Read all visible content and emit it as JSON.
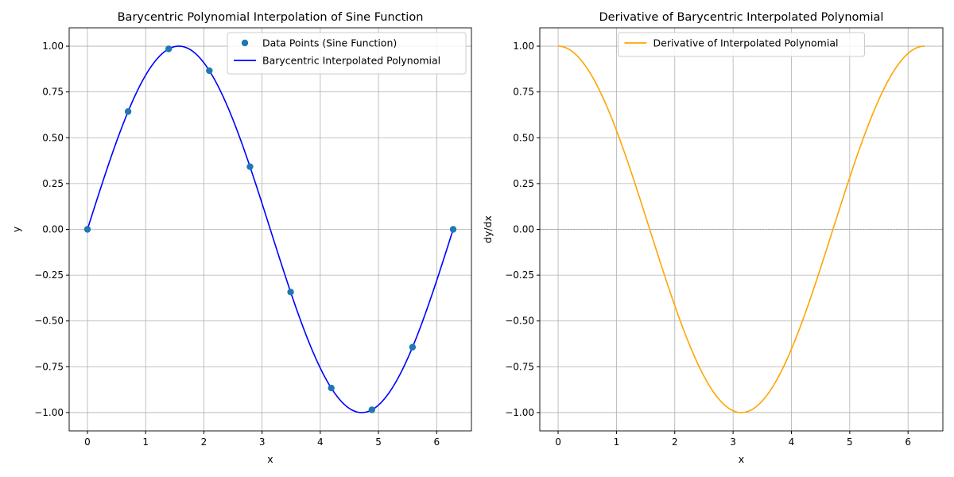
{
  "chart_data": [
    {
      "type": "line",
      "title": "Barycentric Polynomial Interpolation of Sine Function",
      "xlabel": "x",
      "ylabel": "y",
      "xlim": [
        -0.314,
        6.597
      ],
      "ylim": [
        -1.1,
        1.1
      ],
      "xticks": [
        "0",
        "1",
        "2",
        "3",
        "4",
        "5",
        "6"
      ],
      "yticks": [
        "−1.00",
        "−0.75",
        "−0.50",
        "−0.25",
        "0.00",
        "0.25",
        "0.50",
        "0.75",
        "1.00"
      ],
      "grid": true,
      "legend_position": "top-right",
      "series": [
        {
          "name": "Data Points (Sine Function)",
          "kind": "scatter",
          "color": "#1f77b4",
          "x": [
            0,
            0.698,
            1.396,
            2.094,
            2.793,
            3.491,
            4.189,
            4.887,
            5.585,
            6.283
          ],
          "y": [
            0,
            0.643,
            0.985,
            0.866,
            0.342,
            -0.342,
            -0.866,
            -0.985,
            -0.643,
            0
          ]
        },
        {
          "name": "Barycentric Interpolated Polynomial",
          "kind": "line",
          "color": "#0000ff",
          "function": "sin(x)",
          "x_range": [
            0,
            6.283
          ]
        }
      ]
    },
    {
      "type": "line",
      "title": "Derivative of Barycentric Interpolated Polynomial",
      "xlabel": "x",
      "ylabel": "dy/dx",
      "xlim": [
        -0.314,
        6.597
      ],
      "ylim": [
        -1.1,
        1.1
      ],
      "xticks": [
        "0",
        "1",
        "2",
        "3",
        "4",
        "5",
        "6"
      ],
      "yticks": [
        "−1.00",
        "−0.75",
        "−0.50",
        "−0.25",
        "0.00",
        "0.25",
        "0.50",
        "0.75",
        "1.00"
      ],
      "grid": true,
      "hline": 0,
      "legend_position": "top-center",
      "series": [
        {
          "name": "Derivative of Interpolated Polynomial",
          "kind": "line",
          "color": "#ffa500",
          "function": "cos(x)",
          "x_range": [
            0,
            6.283
          ]
        }
      ]
    }
  ]
}
